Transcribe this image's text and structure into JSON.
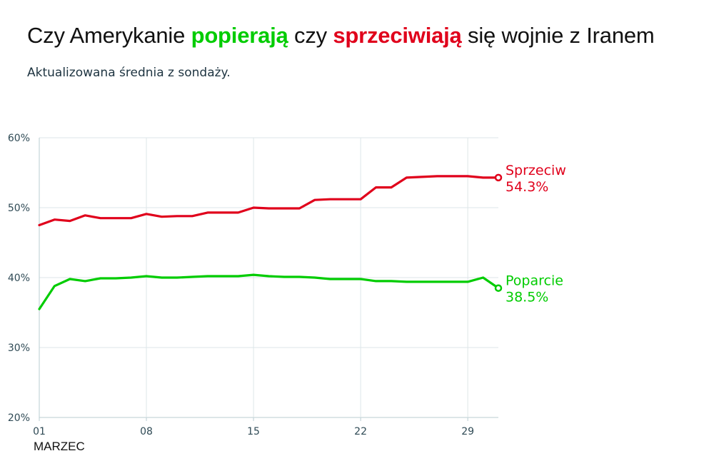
{
  "title": {
    "part1": "Czy Amerykanie ",
    "support_word": "popierają",
    "part2": " czy ",
    "oppose_word": "sprzeciwiają",
    "part3": " się wojnie z Iranem"
  },
  "subtitle": "Aktualizowana średnia z sondaży.",
  "colors": {
    "support": "#00cc00",
    "oppose": "#e0001b",
    "grid": "#dde6e8",
    "axis": "#b9cdd2"
  },
  "chart_data": {
    "type": "line",
    "title": "Czy Amerykanie popierają czy sprzeciwiają się wojnie z Iranem",
    "subtitle": "Aktualizowana średnia z sondaży.",
    "xlabel": "MARZEC",
    "ylabel": "",
    "ylim": [
      20,
      60
    ],
    "xlim": [
      1,
      31
    ],
    "y_ticks": [
      20,
      30,
      40,
      50,
      60
    ],
    "y_tick_labels": [
      "20%",
      "30%",
      "40%",
      "50%",
      "60%"
    ],
    "x_ticks": [
      1,
      8,
      15,
      22,
      29
    ],
    "x_tick_labels": [
      "01",
      "08",
      "15",
      "22",
      "29"
    ],
    "grid": true,
    "series": [
      {
        "name": "Sprzeciw",
        "end_label": "54.3%",
        "color": "#e0001b",
        "x": [
          1,
          2,
          3,
          4,
          5,
          6,
          7,
          8,
          9,
          10,
          11,
          12,
          13,
          14,
          15,
          16,
          17,
          18,
          19,
          20,
          21,
          22,
          23,
          24,
          25,
          26,
          27,
          28,
          29,
          30,
          31
        ],
        "values": [
          47.5,
          48.3,
          48.1,
          48.9,
          48.5,
          48.5,
          48.5,
          49.1,
          48.7,
          48.8,
          48.8,
          49.3,
          49.3,
          49.3,
          50.0,
          49.9,
          49.9,
          49.9,
          51.1,
          51.2,
          51.2,
          51.2,
          52.9,
          52.9,
          54.3,
          54.4,
          54.5,
          54.5,
          54.5,
          54.3,
          54.3
        ]
      },
      {
        "name": "Poparcie",
        "end_label": "38.5%",
        "color": "#00cc00",
        "x": [
          1,
          2,
          3,
          4,
          5,
          6,
          7,
          8,
          9,
          10,
          11,
          12,
          13,
          14,
          15,
          16,
          17,
          18,
          19,
          20,
          21,
          22,
          23,
          24,
          25,
          26,
          27,
          28,
          29,
          30,
          31
        ],
        "values": [
          35.5,
          38.8,
          39.8,
          39.5,
          39.9,
          39.9,
          40.0,
          40.2,
          40.0,
          40.0,
          40.1,
          40.2,
          40.2,
          40.2,
          40.4,
          40.2,
          40.1,
          40.1,
          40.0,
          39.8,
          39.8,
          39.8,
          39.5,
          39.5,
          39.4,
          39.4,
          39.4,
          39.4,
          39.4,
          40.0,
          38.5
        ]
      }
    ]
  }
}
